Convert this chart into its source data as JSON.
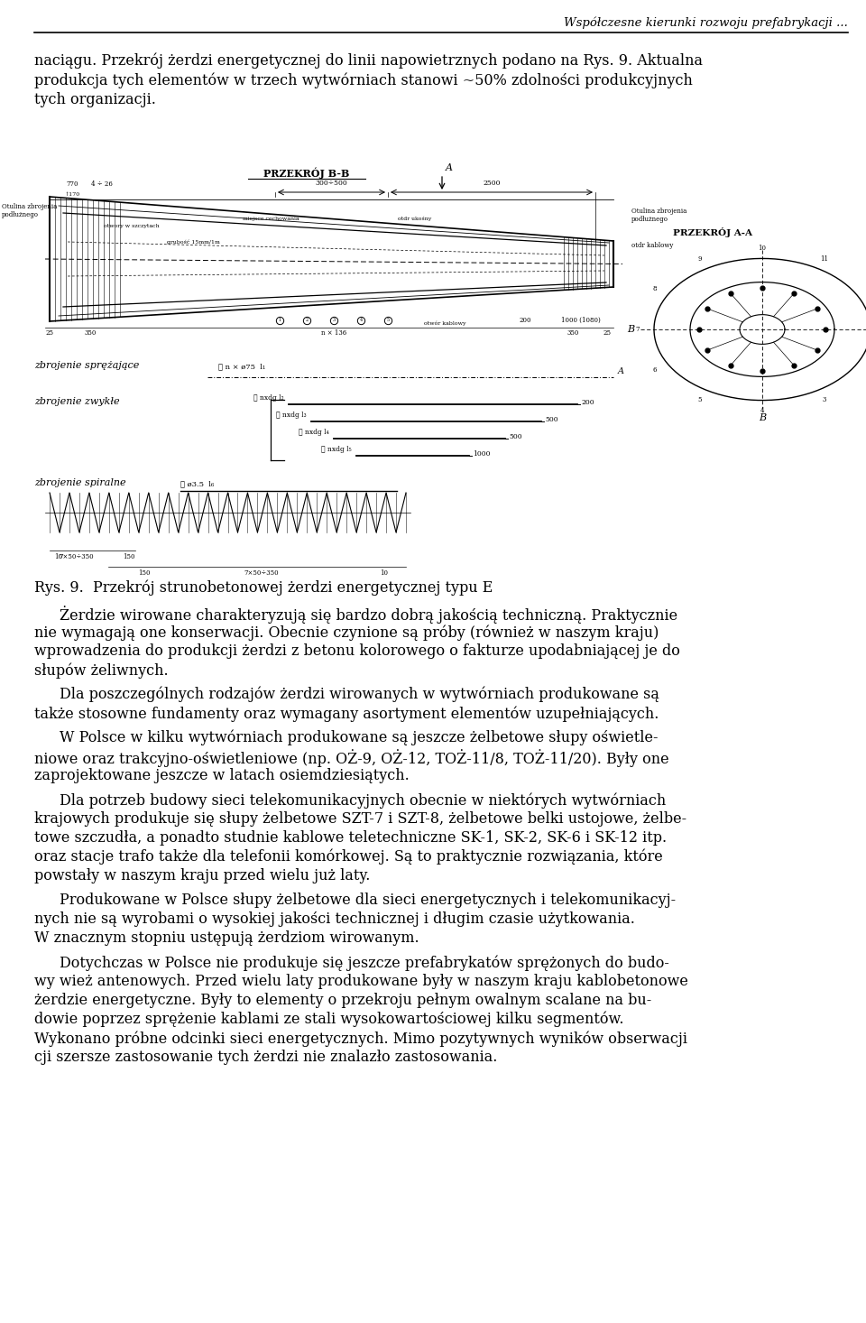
{
  "background_color": "#ffffff",
  "page_width": 9.6,
  "page_height": 14.66,
  "header_italic": "Współczesne kierunki rozwoju prefabrykacji ...",
  "body_text": [
    "naciągu. Przekrój żerdzi energetycznej do linii napowietrznych podano na Rys. 9. Aktualna",
    "produkcja tych elementów w trzech wytwórniach stanowi ~50% zdolności produkcyjnych",
    "tych organizacji."
  ],
  "caption_line1": "Rys. 9.  Przekrój strunobetonowej żerdzi energetycznej typu E",
  "paragraph1_lines": [
    "Żerdzie wirowane charakteryzują się bardzo dobrą jakością techniczną. Praktycznie",
    "nie wymagają one konserwacji. Obecnie czynione są próby (również w naszym kraju)",
    "wprowadzenia do produkcji żerdzi z betonu kolorowego o fakturze upodabniającej je do",
    "słupów żeliwnych."
  ],
  "paragraph2_lines": [
    "Dla poszczególnych rodzajów żerdzi wirowanych w wytwórniach produkowane są",
    "także stosowne fundamenty oraz wymagany asortyment elementów uzupełniających."
  ],
  "paragraph3_lines": [
    "W Polsce w kilku wytwórniach produkowane są jeszcze żelbetowe słupy oświetle-",
    "niowe oraz trakcyjno-oświetleniowe (np. OŻ-9, OŻ-12, TOŻ-11/8, TOŻ-11/20). Były one",
    "zaprojektowane jeszcze w latach osiemdziesiątych."
  ],
  "paragraph4_lines": [
    "Dla potrzeb budowy sieci telekomunikacyjnych obecnie w niektórych wytwórniach",
    "krajowych produkuje się słupy żelbetowe SZT-7 i SZT-8, żelbetowe belki ustojowe, żelbe-",
    "towe szczudła, a ponadto studnie kablowe teletechniczne SK-1, SK-2, SK-6 i SK-12 itp.",
    "oraz stacje trafo także dla telefonii komórkowej. Są to praktycznie rozwiązania, które",
    "powstały w naszym kraju przed wielu już laty."
  ],
  "paragraph5_lines": [
    "Produkowane w Polsce słupy żelbetowe dla sieci energetycznych i telekomunikacyj-",
    "nych nie są wyrobami o wysokiej jakości technicznej i długim czasie użytkowania.",
    "W znacznym stopniu ustępują żerdziom wirowanym."
  ],
  "paragraph6_lines": [
    "Dotychczas w Polsce nie produkuje się jeszcze prefabrykatów sprężonych do budo-",
    "wy wież antenowych. Przed wielu laty produkowane były w naszym kraju kablobetonowe",
    "żerdzie energetyczne. Były to elementy o przekroju pełnym owalnym scalane na bu-",
    "dowie poprzez sprężenie kablami ze stali wysokowartościowej kilku segmentów.",
    "Wykonano próbne odcinki sieci energetycznych. Mimo pozytywnych wyników obserwacji",
    "cji szersze zastosowanie tych żerdzi nie znalazło zastosowania."
  ],
  "text_color": "#000000",
  "line_color": "#000000"
}
